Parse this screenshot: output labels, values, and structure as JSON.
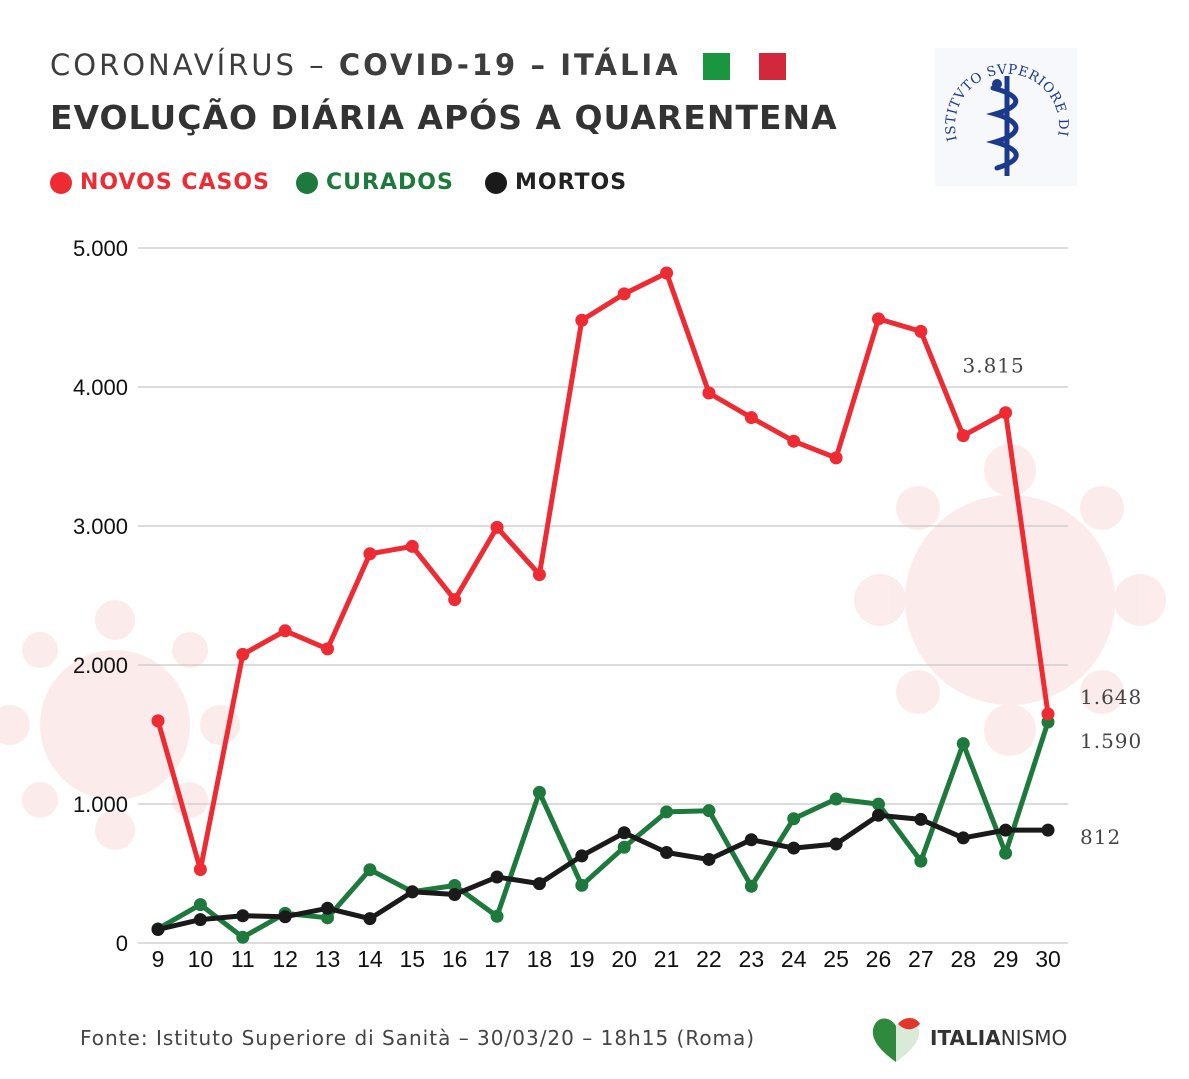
{
  "header": {
    "title_prefix": "CORONAVÍRUS",
    "dash1": "–",
    "title_covid": "COVID-19",
    "dash2": "–",
    "title_country": "ITÁLIA",
    "subtitle": "EVOLUÇÃO DIÁRIA APÓS A QUARENTENA",
    "flag_colors": [
      "#1a9640",
      "#d2283c"
    ]
  },
  "legend": [
    {
      "label": "NOVOS CASOS",
      "color": "#ee2a33"
    },
    {
      "label": "CURADOS",
      "color": "#1e7a3c"
    },
    {
      "label": "MORTOS",
      "color": "#1a1a1a"
    }
  ],
  "logo": {
    "icon": "iss-seal-icon",
    "text": "ISTITVTO SVPERIORE DI SANITA"
  },
  "chart_data": {
    "type": "line",
    "title": "EVOLUÇÃO DIÁRIA APÓS A QUARENTENA",
    "xlabel": "",
    "ylabel": "",
    "categories": [
      "9",
      "10",
      "11",
      "12",
      "13",
      "14",
      "15",
      "16",
      "17",
      "18",
      "19",
      "20",
      "21",
      "22",
      "23",
      "24",
      "25",
      "26",
      "27",
      "28",
      "29",
      "30"
    ],
    "ylim": [
      0,
      5000
    ],
    "yticks": [
      0,
      1000,
      2000,
      3000,
      4000,
      5000
    ],
    "ytick_labels": [
      "0",
      "1.000",
      "2.000",
      "3.000",
      "4.000",
      "5.000"
    ],
    "grid": true,
    "series": [
      {
        "name": "NOVOS CASOS",
        "color": "#ee2a33",
        "values": [
          1598,
          529,
          2076,
          2246,
          2116,
          2800,
          2853,
          2470,
          2990,
          2650,
          4480,
          4670,
          4820,
          3957,
          3780,
          3610,
          3490,
          4490,
          4400,
          3650,
          3815,
          1648
        ]
      },
      {
        "name": "CURADOS",
        "color": "#1e7a3c",
        "values": [
          102,
          276,
          41,
          213,
          181,
          527,
          369,
          414,
          192,
          1084,
          415,
          689,
          943,
          952,
          408,
          894,
          1036,
          999,
          589,
          1434,
          646,
          1590
        ]
      },
      {
        "name": "MORTOS",
        "color": "#1a1a1a",
        "values": [
          97,
          168,
          196,
          189,
          250,
          175,
          368,
          349,
          475,
          427,
          627,
          793,
          651,
          601,
          743,
          683,
          712,
          919,
          889,
          756,
          812,
          812
        ]
      }
    ],
    "data_labels": [
      {
        "series": "NOVOS CASOS",
        "index": 20,
        "text": "3.815"
      },
      {
        "series": "NOVOS CASOS",
        "index": 21,
        "text": "1.648"
      },
      {
        "series": "CURADOS",
        "index": 21,
        "text": "1.590"
      },
      {
        "series": "MORTOS",
        "index": 21,
        "text": "812"
      }
    ]
  },
  "footer": {
    "source": "Fonte: Istituto Superiore di Sanità – 30/03/20 – 18h15 (Roma)",
    "brand_bold": "ITALIA",
    "brand_thin": "NISMO",
    "brand_icon": "italianismo-heart-icon"
  }
}
